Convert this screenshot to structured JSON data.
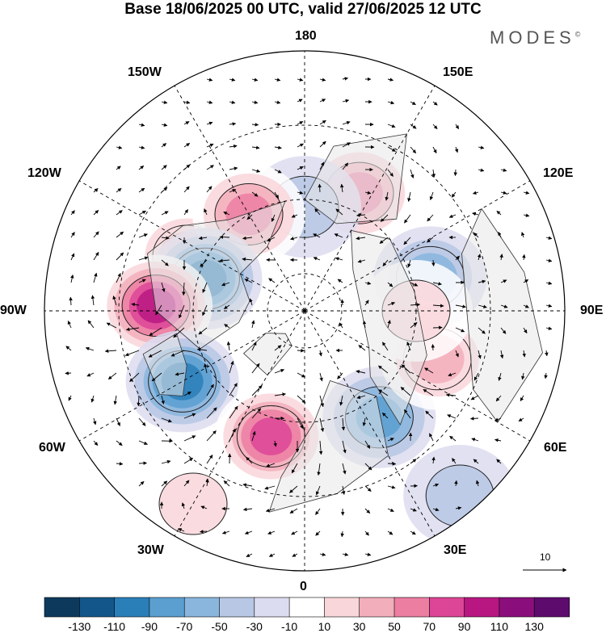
{
  "title": "Base 18/06/2025 00 UTC, valid 27/06/2025 12 UTC",
  "brand": "MODES",
  "brand_mark": "©",
  "longitudes": {
    "top": "180",
    "bottom": "0",
    "left": "90W",
    "right": "90E",
    "upper_left_1": "150W",
    "upper_left_2": "120W",
    "upper_right_1": "150E",
    "upper_right_2": "120E",
    "lower_left_1": "60W",
    "lower_left_2": "30W",
    "lower_right_1": "60E",
    "lower_right_2": "30E"
  },
  "reference_vector_label": "10",
  "colorbar": {
    "colors": [
      "#0d3a5c",
      "#13578a",
      "#2a7fb8",
      "#5b9fd0",
      "#8ab6de",
      "#b7c7e4",
      "#dcdcf0",
      "#ffffff",
      "#f9d6da",
      "#f2aebb",
      "#ec7ea2",
      "#dd4596",
      "#b81781",
      "#8a0f7c",
      "#5e0b6e"
    ],
    "ticks": [
      "-130",
      "-110",
      "-90",
      "-70",
      "-50",
      "-30",
      "-10",
      "10",
      "30",
      "50",
      "70",
      "90",
      "110",
      "130"
    ]
  },
  "anomalies": [
    {
      "lon": 155,
      "lat": 55,
      "value": 70
    },
    {
      "lon": 180,
      "lat": 62,
      "value": -30
    },
    {
      "lon": -115,
      "lat": 55,
      "value": 40
    },
    {
      "lon": -150,
      "lat": 60,
      "value": 60
    },
    {
      "lon": -108,
      "lat": 62,
      "value": -80
    },
    {
      "lon": -92,
      "lat": 50,
      "value": 100
    },
    {
      "lon": -60,
      "lat": 52,
      "value": -95
    },
    {
      "lon": -15,
      "lat": 55,
      "value": 85
    },
    {
      "lon": 35,
      "lat": 55,
      "value": -60
    },
    {
      "lon": 70,
      "lat": 52,
      "value": 55
    },
    {
      "lon": 105,
      "lat": 55,
      "value": -40
    },
    {
      "lon": 90,
      "lat": 60,
      "value": 25
    },
    {
      "lon": 40,
      "lat": 25,
      "value": -15
    },
    {
      "lon": -30,
      "lat": 30,
      "value": 25
    }
  ]
}
